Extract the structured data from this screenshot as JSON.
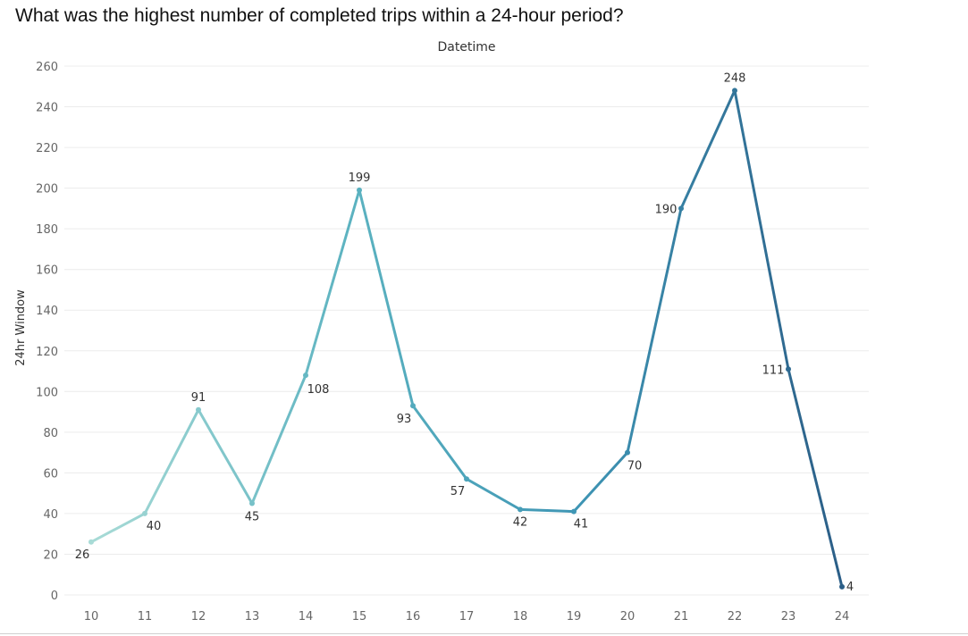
{
  "page": {
    "title": "What was the highest number of completed trips within a 24-hour period?"
  },
  "chart_data": {
    "type": "line",
    "title": "What was the highest number of completed trips within a 24-hour period?",
    "header": "Datetime",
    "xlabel": "",
    "ylabel": "24hr Window",
    "x": [
      10,
      11,
      12,
      13,
      14,
      15,
      16,
      17,
      18,
      19,
      20,
      21,
      22,
      23,
      24
    ],
    "values": [
      26,
      40,
      91,
      45,
      108,
      199,
      93,
      57,
      42,
      41,
      70,
      190,
      248,
      111,
      4
    ],
    "xlim": [
      10,
      24
    ],
    "ylim": [
      0,
      260
    ],
    "yticks": [
      0,
      20,
      40,
      60,
      80,
      100,
      120,
      140,
      160,
      180,
      200,
      220,
      240,
      260
    ],
    "grid": true,
    "legend": "none",
    "color_gradient": [
      "#a8dbd6",
      "#5bb2c0",
      "#3e95b4",
      "#2b5e87"
    ]
  }
}
